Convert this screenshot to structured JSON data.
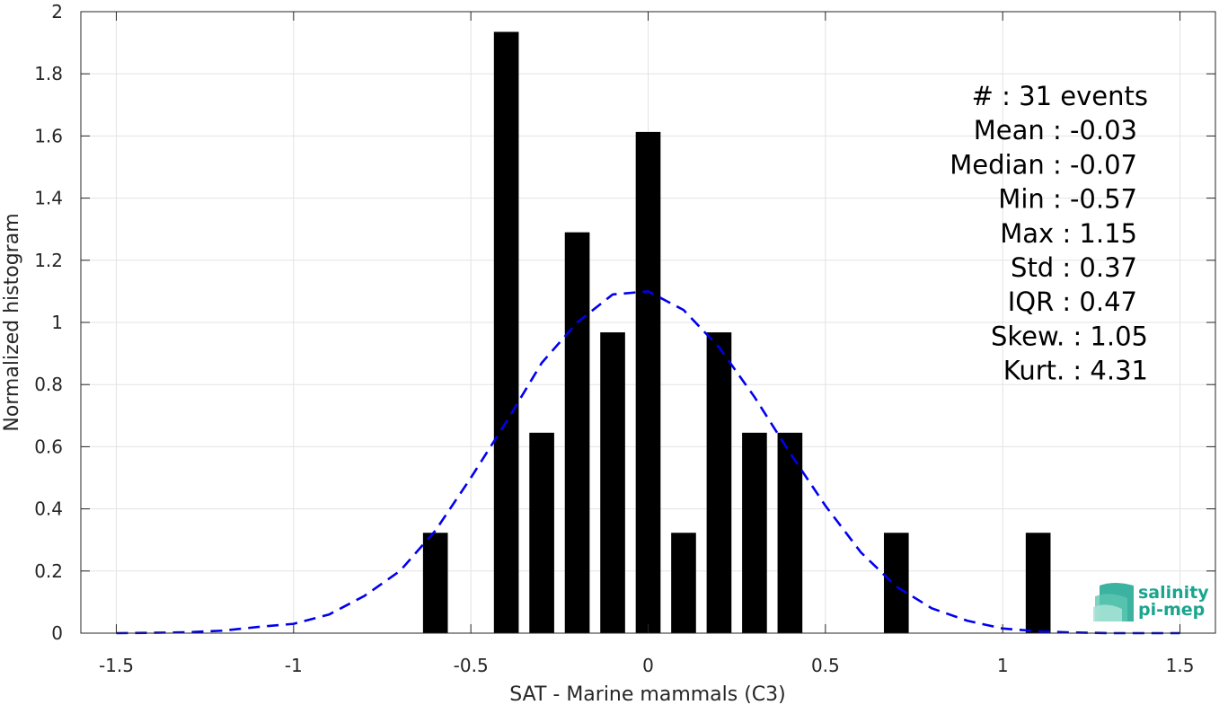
{
  "chart_data": {
    "type": "bar",
    "xlabel": "SAT - Marine mammals (C3)",
    "ylabel": "Normalized histogram",
    "xlim": [
      -1.6,
      1.6
    ],
    "ylim": [
      0,
      2
    ],
    "xticks": [
      -1.5,
      -1,
      -0.5,
      0,
      0.5,
      1,
      1.5
    ],
    "xtick_labels": [
      "-1.5",
      "-1",
      "-0.5",
      "0",
      "0.5",
      "1",
      "1.5"
    ],
    "yticks": [
      0,
      0.2,
      0.4,
      0.6,
      0.8,
      1,
      1.2,
      1.4,
      1.6,
      1.8,
      2
    ],
    "ytick_labels": [
      "0",
      "0.2",
      "0.4",
      "0.6",
      "0.8",
      "1",
      "1.2",
      "1.4",
      "1.6",
      "1.8",
      "2"
    ],
    "grid": true,
    "bar_color": "#000000",
    "bar_width": 0.07,
    "bars": [
      {
        "x": -0.6,
        "value": 0.323
      },
      {
        "x": -0.4,
        "value": 1.935
      },
      {
        "x": -0.3,
        "value": 0.645
      },
      {
        "x": -0.2,
        "value": 1.29
      },
      {
        "x": -0.1,
        "value": 0.968
      },
      {
        "x": 0.0,
        "value": 1.613
      },
      {
        "x": 0.1,
        "value": 0.323
      },
      {
        "x": 0.2,
        "value": 0.968
      },
      {
        "x": 0.3,
        "value": 0.645
      },
      {
        "x": 0.4,
        "value": 0.645
      },
      {
        "x": 0.7,
        "value": 0.323
      },
      {
        "x": 1.1,
        "value": 0.323
      }
    ],
    "fit_curve": {
      "style": "dashed",
      "color": "#0000ee",
      "x": [
        -1.5,
        -1.4,
        -1.3,
        -1.2,
        -1.1,
        -1.0,
        -0.9,
        -0.8,
        -0.7,
        -0.6,
        -0.5,
        -0.4,
        -0.3,
        -0.2,
        -0.1,
        0.0,
        0.1,
        0.2,
        0.3,
        0.4,
        0.5,
        0.6,
        0.7,
        0.8,
        0.9,
        1.0,
        1.1,
        1.2,
        1.3,
        1.4,
        1.5
      ],
      "y": [
        0.0,
        0.001,
        0.003,
        0.008,
        0.02,
        0.03,
        0.06,
        0.12,
        0.2,
        0.33,
        0.5,
        0.68,
        0.87,
        1.0,
        1.09,
        1.1,
        1.04,
        0.92,
        0.76,
        0.58,
        0.41,
        0.26,
        0.15,
        0.08,
        0.04,
        0.015,
        0.006,
        0.002,
        0.0,
        0.0,
        0.0
      ]
    },
    "stats": [
      "#  : 31 events",
      "Mean : -0.03",
      "Median : -0.07",
      "Min : -0.57",
      "Max : 1.15",
      "Std : 0.37",
      "IQR : 0.47",
      "Skew. : 1.05",
      "Kurt. : 4.31"
    ]
  },
  "logo": {
    "line1": "salinity",
    "line2": "pi-mep",
    "color": "#1aa58f"
  }
}
